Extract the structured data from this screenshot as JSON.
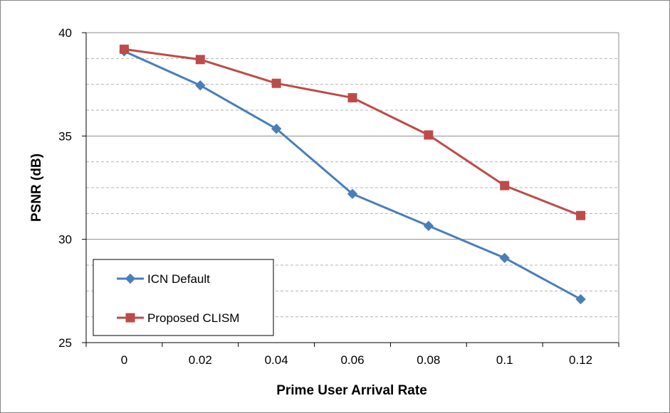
{
  "chart_data": {
    "type": "line",
    "title": "",
    "xlabel": "Prime User Arrival Rate",
    "ylabel": "PSNR (dB)",
    "categories": [
      "0",
      "0.02",
      "0.04",
      "0.06",
      "0.08",
      "0.1",
      "0.12"
    ],
    "ylim": [
      25,
      40
    ],
    "y_ticks": [
      25,
      30,
      35,
      40
    ],
    "y_tick_labels": [
      "25",
      "30",
      "35",
      "40"
    ],
    "minor_grid_step": 1.25,
    "grid": true,
    "legend_position": "bottom-left",
    "series": [
      {
        "name": "ICN Default",
        "color": "#4a7ebb",
        "marker": "diamond",
        "values": [
          39.1,
          37.45,
          35.35,
          32.2,
          30.65,
          29.1,
          27.1
        ]
      },
      {
        "name": "Proposed CLISM",
        "color": "#be4b48",
        "marker": "square",
        "values": [
          39.2,
          38.7,
          37.55,
          36.85,
          35.05,
          32.6,
          31.15
        ]
      }
    ]
  }
}
